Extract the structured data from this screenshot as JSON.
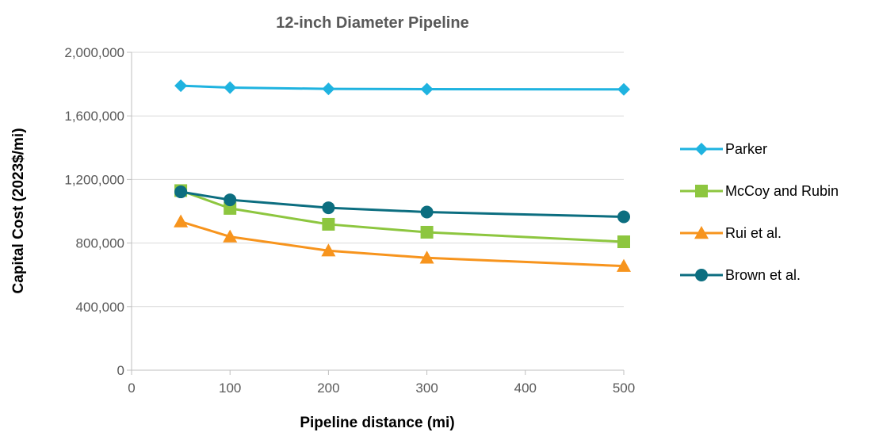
{
  "chart_data": {
    "type": "line",
    "title": "12-inch Diameter Pipeline",
    "xlabel": "Pipeline distance (mi)",
    "ylabel": "Capital Cost (2023$/mi)",
    "xlim": [
      0,
      500
    ],
    "ylim": [
      0,
      2000000
    ],
    "x_ticks": [
      "0",
      "100",
      "200",
      "300",
      "400",
      "500"
    ],
    "x_tick_values": [
      0,
      100,
      200,
      300,
      400,
      500
    ],
    "y_ticks": [
      "0",
      "400,000",
      "800,000",
      "1,200,000",
      "1,600,000",
      "2,000,000"
    ],
    "y_tick_values": [
      0,
      400000,
      800000,
      1200000,
      1600000,
      2000000
    ],
    "x": [
      50,
      100,
      200,
      300,
      500
    ],
    "grid": "horizontal",
    "legend_position": "right",
    "series": [
      {
        "name": "Parker",
        "marker": "diamond",
        "color": "#1fb3e0",
        "values": [
          1790000,
          1778000,
          1770000,
          1768000,
          1767000
        ]
      },
      {
        "name": "McCoy and Rubin",
        "marker": "square",
        "color": "#8dc63f",
        "values": [
          1130000,
          1018000,
          918000,
          868000,
          808000
        ]
      },
      {
        "name": "Rui et al.",
        "marker": "triangle",
        "color": "#f7941d",
        "values": [
          935000,
          840000,
          752000,
          707000,
          655000
        ]
      },
      {
        "name": "Brown et al.",
        "marker": "circle",
        "color": "#0c6e80",
        "values": [
          1122000,
          1072000,
          1022000,
          995000,
          965000
        ]
      }
    ]
  }
}
